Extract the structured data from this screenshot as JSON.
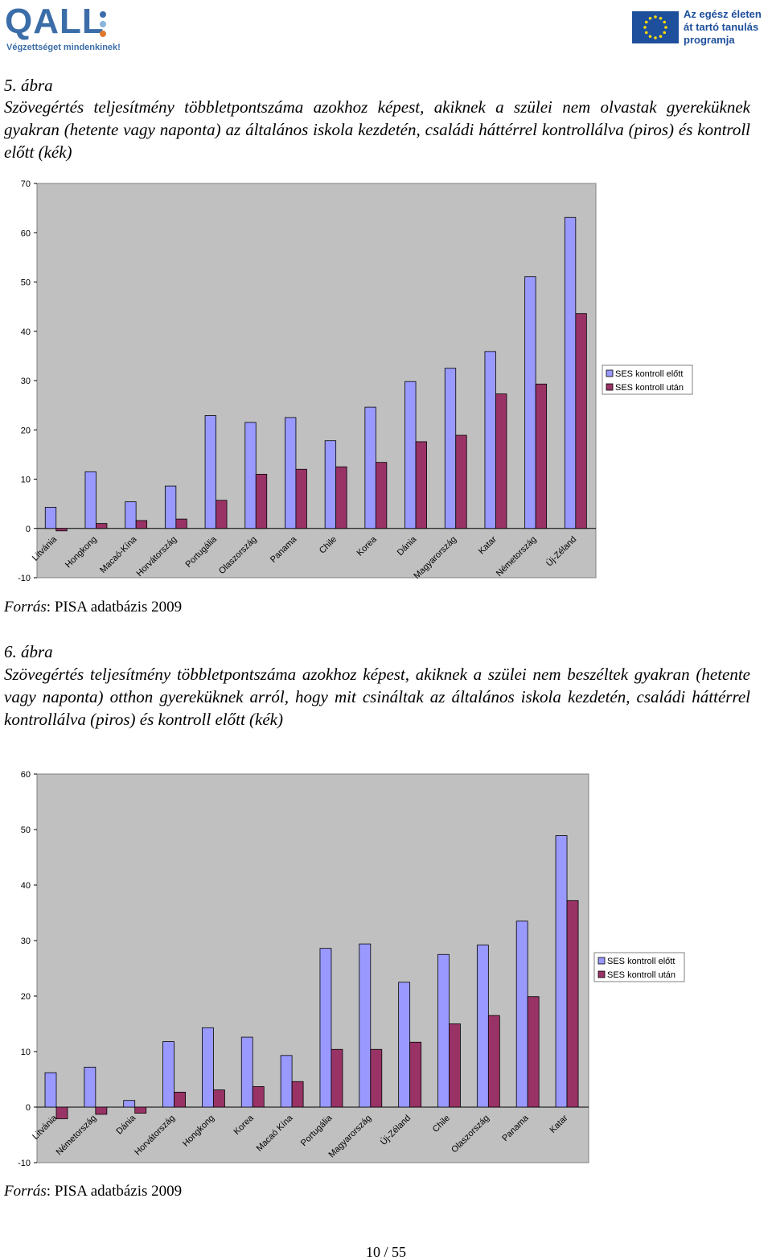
{
  "header": {
    "qall_logo_text": "QALL",
    "qall_logo_tagline": "Végzettséget mindenkinek!",
    "eu_program_lines": [
      "Az egész életen",
      "át tartó tanulás",
      "programja"
    ],
    "colors": {
      "qall_blue": "#3b6ea8",
      "qall_dot_1": "#3b6ea8",
      "qall_dot_2": "#8ab4dc",
      "qall_dot_3": "#e07a2e",
      "eu_blue": "#1e4f9c",
      "eu_star": "#ffdd00"
    }
  },
  "figure5": {
    "number": "5. ábra",
    "title": "Szövegértés teljesítmény többletpontszáma azokhoz képest, akiknek a szülei nem olvastak gyereküknek gyakran (hetente vagy naponta) az általános iskola kezdetén, családi háttérrel kontrollálva (piros) és kontroll előtt (kék)",
    "source_label": "Forrás",
    "source_text": ": PISA adatbázis 2009"
  },
  "figure6": {
    "number": "6. ábra",
    "title": "Szövegértés teljesítmény többletpontszáma azokhoz képest, akiknek a szülei nem beszéltek gyakran (hetente vagy naponta) otthon gyereküknek arról, hogy mit csináltak az általános iskola kezdetén, családi háttérrel kontrollálva (piros) és kontroll előtt (kék)",
    "source_label": "Forrás",
    "source_text": ": PISA adatbázis 2009"
  },
  "chart_data": [
    {
      "type": "bar",
      "categories": [
        "Litvánia",
        "Hongkong",
        "Macaó-Kína",
        "Horvátország",
        "Portugália",
        "Olaszország",
        "Panama",
        "Chile",
        "Korea",
        "Dánia",
        "Magyarország",
        "Katar",
        "Németország",
        "Új-Zéland"
      ],
      "series": [
        {
          "name": "SES kontroll előtt",
          "color": "#9999ff",
          "values": [
            4.3,
            11.5,
            5.4,
            8.6,
            22.9,
            21.5,
            22.5,
            17.8,
            24.6,
            29.8,
            32.5,
            35.9,
            51.1,
            63.1
          ]
        },
        {
          "name": "SES kontroll után",
          "color": "#993366",
          "values": [
            -0.5,
            1.0,
            1.6,
            1.9,
            5.7,
            11.0,
            12.0,
            12.5,
            13.4,
            17.6,
            18.9,
            27.3,
            29.3,
            43.6
          ]
        }
      ],
      "ylim": [
        -10,
        70
      ],
      "yticks": [
        "70",
        "60",
        "50",
        "40",
        "30",
        "20",
        "10",
        "0",
        "-10"
      ],
      "legend_position": "right",
      "grid": false,
      "plot_background": "#c0c0c0"
    },
    {
      "type": "bar",
      "categories": [
        "Litvánia",
        "Németország",
        "Dánia",
        "Horvátország",
        "Hongkong",
        "Korea",
        "Macaó Kína",
        "Portugália",
        "Magyarország",
        "Új-Zéland",
        "Chile",
        "Olaszország",
        "Panama",
        "Katar"
      ],
      "series": [
        {
          "name": "SES kontroll előtt",
          "color": "#9999ff",
          "values": [
            6.2,
            7.2,
            1.2,
            11.8,
            14.3,
            12.6,
            9.3,
            28.6,
            29.4,
            22.5,
            27.5,
            29.2,
            33.5,
            48.9
          ]
        },
        {
          "name": "SES kontroll után",
          "color": "#993366",
          "values": [
            -2.1,
            -1.3,
            -1.1,
            2.7,
            3.1,
            3.7,
            4.6,
            10.4,
            10.4,
            11.7,
            15.0,
            16.5,
            19.9,
            37.2
          ]
        }
      ],
      "ylim": [
        -10,
        60
      ],
      "yticks": [
        "60",
        "50",
        "40",
        "30",
        "20",
        "10",
        "0",
        "-10"
      ],
      "legend_position": "right",
      "grid": false,
      "plot_background": "#c0c0c0"
    }
  ],
  "footer": {
    "page": "10 / 55"
  }
}
